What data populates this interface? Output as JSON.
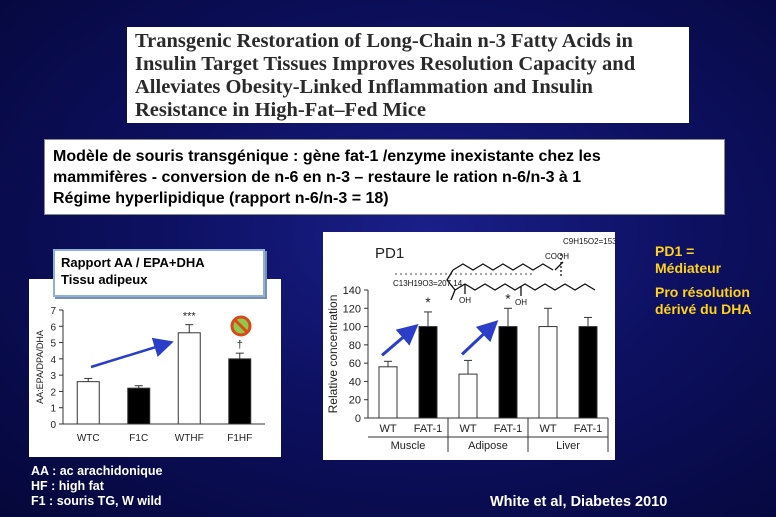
{
  "title_lines": [
    "Transgenic Restoration of Long-Chain n-3 Fatty Acids in",
    "Insulin Target Tissues Improves Resolution Capacity and",
    "Alleviates Obesity-Linked Inflammation and Insulin",
    "Resistance in High-Fat–Fed Mice"
  ],
  "description_lines": [
    "Modèle de souris transgénique : gène fat-1 /enzyme inexistante chez les",
    "mammifères - conversion de n-6 en n-3 – restaure le ration n-6/n-3 à 1",
    "Régime hyperlipidique (rapport n-6/n-3 = 18)"
  ],
  "left_chart_label": [
    "Rapport AA / EPA+DHA",
    "Tissu adipeux"
  ],
  "right_notes": [
    "PD1 =",
    "Médiateur",
    "Pro résolution",
    "dérivé du DHA"
  ],
  "legend_lines": [
    "AA : ac arachidonique",
    "HF : high fat",
    "F1 : souris TG, W wild"
  ],
  "citation": "White et al, Diabetes 2010",
  "pd1": {
    "name": "PD1",
    "formula_top": "C9H15O2=153",
    "formula_left": "C13H19O3=207.14",
    "cooh": "COOH",
    "oh1": "OH",
    "oh2": "OH"
  },
  "chart_data": [
    {
      "type": "bar",
      "ylabel": "AA:EPA/DPA/DHA",
      "categories": [
        "WTC",
        "F1C",
        "WTHF",
        "F1HF"
      ],
      "values": [
        2.6,
        2.2,
        5.6,
        4.0
      ],
      "errors": [
        0.2,
        0.15,
        0.5,
        0.35
      ],
      "fills": [
        "white",
        "black",
        "white",
        "black"
      ],
      "yticks": [
        0,
        1,
        2,
        3,
        4,
        5,
        6,
        7
      ],
      "ylim": [
        0,
        7
      ],
      "annotations": [
        {
          "category": "WTHF",
          "text": "***"
        },
        {
          "category": "F1HF",
          "text": "†"
        }
      ]
    },
    {
      "type": "bar",
      "ylabel": "Relative concentration",
      "categories": [
        "WT",
        "FAT-1",
        "WT",
        "FAT-1",
        "WT",
        "FAT-1"
      ],
      "groups": [
        "Muscle",
        "Adipose",
        "Liver"
      ],
      "values": [
        56,
        100,
        48,
        100,
        100,
        100
      ],
      "errors": [
        6,
        16,
        15,
        20,
        20,
        10
      ],
      "fills": [
        "white",
        "black",
        "white",
        "black",
        "white",
        "black"
      ],
      "yticks": [
        0,
        20,
        40,
        60,
        80,
        100,
        120,
        140
      ],
      "ylim": [
        0,
        140
      ],
      "annotations": [
        {
          "index": 1,
          "text": "*"
        },
        {
          "index": 3,
          "text": "*"
        }
      ]
    }
  ],
  "colors": {
    "notes": "#ffd21a",
    "arrow": "#2a3ec8",
    "prohibition": "#d84a1b",
    "prohibition_fill": "#8fc84a"
  }
}
